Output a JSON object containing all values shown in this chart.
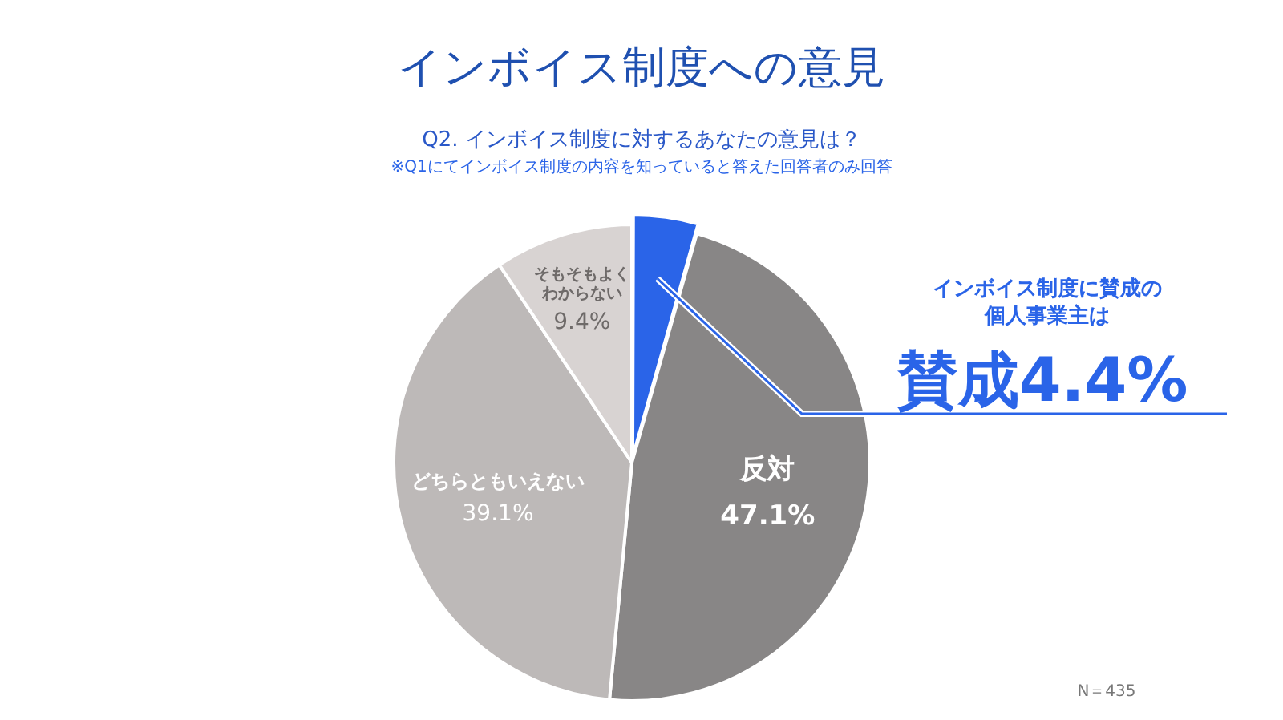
{
  "chart_data": {
    "type": "pie",
    "title": "インボイス制度への意見",
    "subtitle": "Q2. インボイス制度に対するあなたの意見は？",
    "categories": [
      "賛成",
      "反対",
      "どちらともいえない",
      "そもそもよくわからない"
    ],
    "values": [
      4.4,
      47.1,
      39.1,
      9.4
    ],
    "value_labels": [
      "4.4%",
      "47.1%",
      "39.1%",
      "9.4%"
    ],
    "colors": [
      "#2a64e8",
      "#888686",
      "#bdb9b8",
      "#d8d3d2"
    ],
    "legend": false,
    "annotations": [
      "※Q1にてインボイス制度の内容を知っていると答えた回答者のみ回答",
      {
        "text": "インボイス制度に賛成の個人事業主は",
        "x": "賛成"
      },
      "N＝435"
    ]
  }
}
